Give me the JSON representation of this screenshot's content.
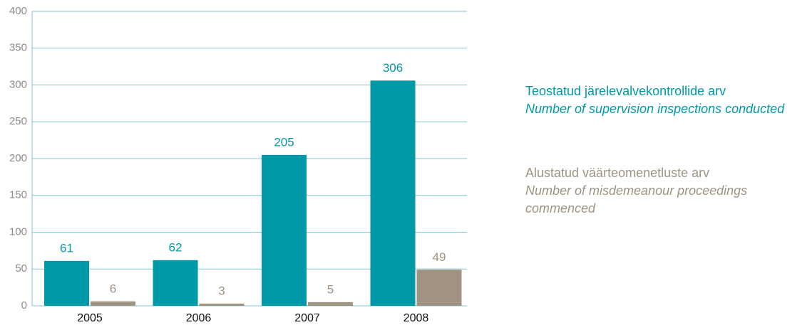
{
  "chart_data": {
    "type": "bar",
    "categories": [
      "2005",
      "2006",
      "2007",
      "2008"
    ],
    "series": [
      {
        "name": "Teostatud järelevalvekontrollide arv",
        "name_en": "Number of supervision inspections conducted",
        "color": "#0099a8",
        "values": [
          61,
          62,
          205,
          306
        ]
      },
      {
        "name": "Alustatud väärteomenetluste arv",
        "name_en": "Number of misdemeanour proceedings commenced",
        "color": "#a09381",
        "values": [
          6,
          3,
          5,
          49
        ]
      }
    ],
    "ylim": [
      0,
      400
    ],
    "yticks": [
      0,
      50,
      100,
      150,
      200,
      250,
      300,
      350,
      400
    ],
    "grid": true
  }
}
